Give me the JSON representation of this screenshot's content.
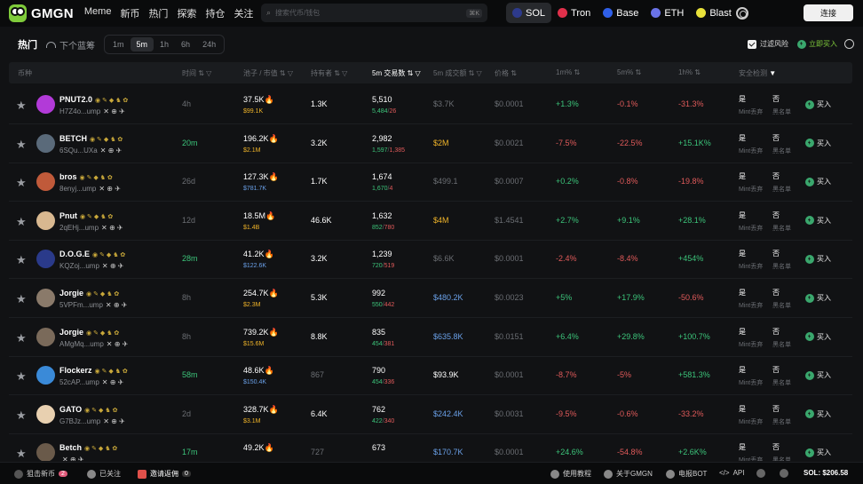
{
  "header": {
    "brand": "GMGN",
    "nav": [
      "Meme",
      "新币",
      "热门",
      "探索",
      "持仓",
      "关注"
    ],
    "search_placeholder": "搜索代币/钱包",
    "search_key": "⌘K",
    "connect": "连接",
    "chains": [
      {
        "name": "SOL",
        "color": "#2d3a8c",
        "active": true
      },
      {
        "name": "Tron",
        "color": "#e0304b",
        "active": false
      },
      {
        "name": "Base",
        "color": "#2f5fe8",
        "active": false
      },
      {
        "name": "ETH",
        "color": "#6a73e8",
        "active": false
      },
      {
        "name": "Blast",
        "color": "#e8e13a",
        "active": false
      }
    ]
  },
  "subbar": {
    "hot": "热门",
    "next": "下个蓝筹",
    "times": [
      "1m",
      "5m",
      "1h",
      "6h",
      "24h"
    ],
    "selected_time": "5m",
    "filter_risk": "过滤风险",
    "buy_now": "立即买入"
  },
  "columns": [
    "币种",
    "时间",
    "池子 / 市值",
    "持有者",
    "5m 交易数",
    "5m 成交额",
    "价格",
    "1m%",
    "5m%",
    "1h%",
    "安全检测"
  ],
  "safety_labels": {
    "yes": "是",
    "no": "否",
    "mint": "Mint丢弃",
    "black": "黑名单"
  },
  "buy_label": "买入",
  "rows": [
    {
      "symbol": "PNUT2.0",
      "addr": "H7Z4o...ump",
      "avatar": "#b23ad8",
      "age": "4h",
      "age_color": "gray",
      "pool": "37.5K",
      "mcap": "$99.1K",
      "mcap_color": "yellow",
      "holders": "1.3K",
      "holders_color": "white",
      "txs": "5,510",
      "buys": "5,484",
      "sells": "26",
      "vol": "$3.7K",
      "vol_color": "gray",
      "price": "$0.0001",
      "price_color": "gray",
      "p1": "+1.3%",
      "p1c": "green",
      "p5": "-0.1%",
      "p5c": "red",
      "p1h": "-31.3%",
      "p1hc": "red"
    },
    {
      "symbol": "BETCH",
      "addr": "6SQu...UXa",
      "avatar": "#5a6a7a",
      "age": "20m",
      "age_color": "green",
      "pool": "196.2K",
      "mcap": "$2.1M",
      "mcap_color": "yellow",
      "holders": "3.2K",
      "holders_color": "white",
      "txs": "2,982",
      "buys": "1,597",
      "sells": "1,385",
      "vol": "$2M",
      "vol_color": "yellow",
      "price": "$0.0021",
      "price_color": "gray",
      "p1": "-7.5%",
      "p1c": "red",
      "p5": "-22.5%",
      "p5c": "red",
      "p1h": "+15.1K%",
      "p1hc": "green"
    },
    {
      "symbol": "bros",
      "addr": "8enyj...ump",
      "avatar": "#c05a3a",
      "age": "26d",
      "age_color": "gray",
      "pool": "127.3K",
      "mcap": "$781.7K",
      "mcap_color": "blue",
      "holders": "1.7K",
      "holders_color": "white",
      "txs": "1,674",
      "buys": "1,670",
      "sells": "4",
      "vol": "$499.1",
      "vol_color": "gray",
      "price": "$0.0007",
      "price_color": "gray",
      "p1": "+0.2%",
      "p1c": "green",
      "p5": "-0.8%",
      "p5c": "red",
      "p1h": "-19.8%",
      "p1hc": "red"
    },
    {
      "symbol": "Pnut",
      "addr": "2qEHj...ump",
      "avatar": "#d8b890",
      "age": "12d",
      "age_color": "gray",
      "pool": "18.5M",
      "mcap": "$1.4B",
      "mcap_color": "yellow",
      "holders": "46.6K",
      "holders_color": "white",
      "txs": "1,632",
      "buys": "852",
      "sells": "780",
      "vol": "$4M",
      "vol_color": "yellow",
      "price": "$1.4541",
      "price_color": "gray",
      "p1": "+2.7%",
      "p1c": "green",
      "p5": "+9.1%",
      "p5c": "green",
      "p1h": "+28.1%",
      "p1hc": "green"
    },
    {
      "symbol": "D.O.G.E",
      "addr": "KQZoj...ump",
      "avatar": "#2a3a8a",
      "age": "28m",
      "age_color": "green",
      "pool": "41.2K",
      "mcap": "$122.6K",
      "mcap_color": "blue",
      "holders": "3.2K",
      "holders_color": "white",
      "txs": "1,239",
      "buys": "720",
      "sells": "519",
      "vol": "$6.6K",
      "vol_color": "gray",
      "price": "$0.0001",
      "price_color": "gray",
      "p1": "-2.4%",
      "p1c": "red",
      "p5": "-8.4%",
      "p5c": "red",
      "p1h": "+454%",
      "p1hc": "green"
    },
    {
      "symbol": "Jorgie",
      "addr": "5VPFm...ump",
      "avatar": "#8a7a6a",
      "age": "8h",
      "age_color": "gray",
      "pool": "254.7K",
      "mcap": "$2.3M",
      "mcap_color": "yellow",
      "holders": "5.3K",
      "holders_color": "white",
      "txs": "992",
      "buys": "550",
      "sells": "442",
      "vol": "$480.2K",
      "vol_color": "blue",
      "price": "$0.0023",
      "price_color": "gray",
      "p1": "+5%",
      "p1c": "green",
      "p5": "+17.9%",
      "p5c": "green",
      "p1h": "-50.6%",
      "p1hc": "red"
    },
    {
      "symbol": "Jorgie",
      "addr": "AMgMq...ump",
      "avatar": "#7a6a5a",
      "age": "8h",
      "age_color": "gray",
      "pool": "739.2K",
      "mcap": "$15.6M",
      "mcap_color": "yellow",
      "holders": "8.8K",
      "holders_color": "white",
      "txs": "835",
      "buys": "454",
      "sells": "381",
      "vol": "$635.8K",
      "vol_color": "blue",
      "price": "$0.0151",
      "price_color": "gray",
      "p1": "+6.4%",
      "p1c": "green",
      "p5": "+29.8%",
      "p5c": "green",
      "p1h": "+100.7%",
      "p1hc": "green"
    },
    {
      "symbol": "Flockerz",
      "addr": "52cAP...ump",
      "avatar": "#3a8ad8",
      "age": "58m",
      "age_color": "green",
      "pool": "48.6K",
      "mcap": "$150.4K",
      "mcap_color": "blue",
      "holders": "867",
      "holders_color": "gray",
      "txs": "790",
      "buys": "454",
      "sells": "336",
      "vol": "$93.9K",
      "vol_color": "white",
      "price": "$0.0001",
      "price_color": "gray",
      "p1": "-8.7%",
      "p1c": "red",
      "p5": "-5%",
      "p5c": "red",
      "p1h": "+581.3%",
      "p1hc": "green"
    },
    {
      "symbol": "GATO",
      "addr": "G7BJz...ump",
      "avatar": "#e8d0b0",
      "age": "2d",
      "age_color": "gray",
      "pool": "328.7K",
      "mcap": "$3.1M",
      "mcap_color": "yellow",
      "holders": "6.4K",
      "holders_color": "white",
      "txs": "762",
      "buys": "422",
      "sells": "340",
      "vol": "$242.4K",
      "vol_color": "blue",
      "price": "$0.0031",
      "price_color": "gray",
      "p1": "-9.5%",
      "p1c": "red",
      "p5": "-0.6%",
      "p5c": "red",
      "p1h": "-33.2%",
      "p1hc": "red"
    },
    {
      "symbol": "Betch",
      "addr": "",
      "avatar": "#6a5a4a",
      "age": "17m",
      "age_color": "green",
      "pool": "49.2K",
      "mcap": "",
      "mcap_color": "blue",
      "holders": "727",
      "holders_color": "gray",
      "txs": "673",
      "buys": "",
      "sells": "",
      "vol": "$170.7K",
      "vol_color": "blue",
      "price": "$0.0001",
      "price_color": "gray",
      "p1": "+24.6%",
      "p1c": "green",
      "p5": "-54.8%",
      "p5c": "red",
      "p1h": "+2.6K%",
      "p1hc": "green"
    }
  ],
  "footer": {
    "snipe": "狙击新币",
    "snipe_count": "2",
    "followed": "已关注",
    "invite": "邀请返佣",
    "invite_count": "0",
    "tutorial": "使用教程",
    "about": "关于GMGN",
    "bot": "电报BOT",
    "api": "API",
    "sol_price": "SOL: $206.58"
  }
}
